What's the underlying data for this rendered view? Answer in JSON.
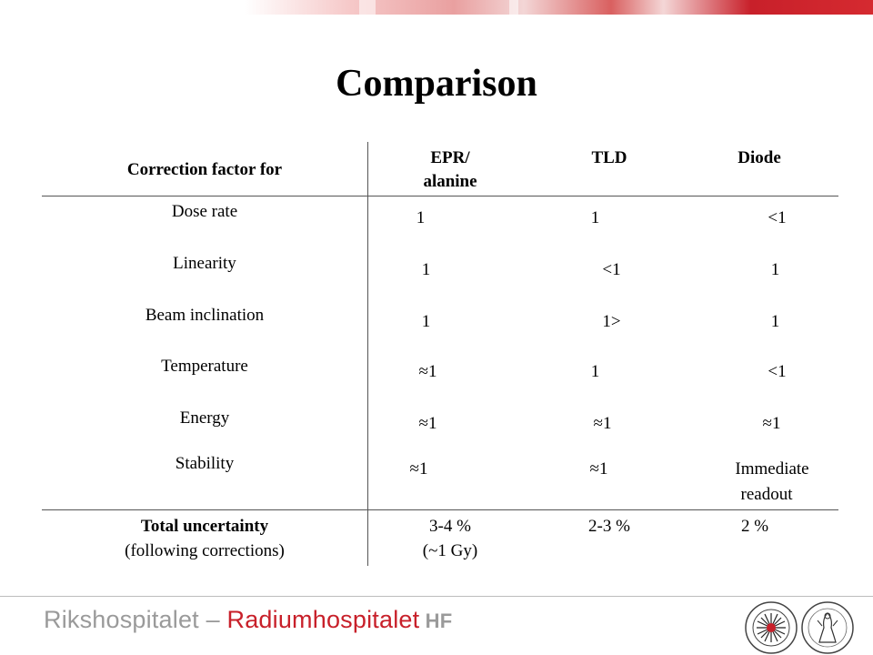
{
  "title": "Comparison",
  "table": {
    "header": {
      "factor": "Correction factor for",
      "epr_line1": "EPR/",
      "epr_line2": "alanine",
      "tld": "TLD",
      "diode": "Diode"
    },
    "rows": [
      {
        "label": "Dose rate",
        "epr": "1",
        "tld": "1",
        "diode": "<1"
      },
      {
        "label": "Linearity",
        "epr": "1",
        "tld": "<1",
        "diode": "1"
      },
      {
        "label": "Beam inclination",
        "epr": "1",
        "tld": "1>",
        "diode": "1"
      },
      {
        "label": "Temperature",
        "epr": "≈1",
        "tld": "1",
        "diode": "<1"
      },
      {
        "label": "Energy",
        "epr": "≈1",
        "tld": "≈1",
        "diode": "≈1"
      },
      {
        "label": "Stability",
        "epr": "≈1",
        "tld": "≈1",
        "diode_line1": "Immediate",
        "diode_line2": "readout"
      }
    ],
    "total": {
      "label_line1": "Total uncertainty",
      "label_line2": "(following corrections)",
      "epr_line1": "3-4 %",
      "epr_line2": "(~1 Gy)",
      "tld": "2-3 %",
      "diode": "2 %"
    }
  },
  "footer": {
    "brand_part1": "Rikshospitalet",
    "brand_sep": " – ",
    "brand_part2": "Radiumhospitalet",
    "brand_part3": " HF",
    "colors": {
      "red": "#c8202a",
      "gray": "#9a9a9a"
    }
  }
}
